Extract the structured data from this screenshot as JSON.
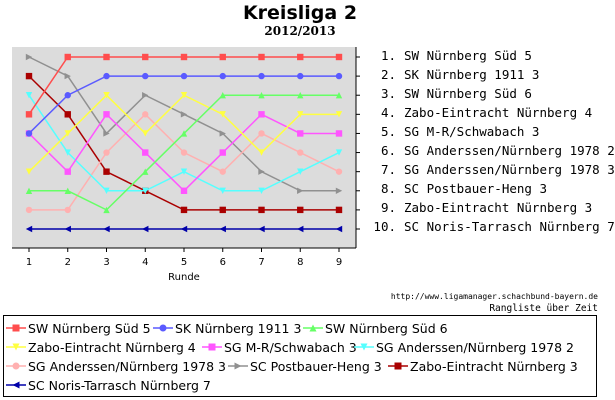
{
  "chart_data": {
    "type": "line",
    "title": "Kreisliga 2",
    "subtitle": "2012/2013",
    "xlabel": "Runde",
    "ylabel": "",
    "x": [
      1,
      2,
      3,
      4,
      5,
      6,
      7,
      8,
      9
    ],
    "ylim": [
      1,
      10
    ],
    "y_inverted": true,
    "grid": false,
    "background": "#dcdcdc",
    "series": [
      {
        "name": "SW Nürnberg Süd 5",
        "color": "#ff4d4d",
        "marker": "square",
        "values": [
          4,
          1,
          1,
          1,
          1,
          1,
          1,
          1,
          1
        ]
      },
      {
        "name": "SK Nürnberg 1911 3",
        "color": "#5a5aff",
        "marker": "circle",
        "values": [
          5,
          3,
          2,
          2,
          2,
          2,
          2,
          2,
          2
        ]
      },
      {
        "name": "SW Nürnberg Süd 6",
        "color": "#66ff66",
        "marker": "triangle-up",
        "values": [
          8,
          8,
          9,
          7,
          5,
          3,
          3,
          3,
          3
        ]
      },
      {
        "name": "Zabo-Eintracht Nürnberg 4",
        "color": "#ffff40",
        "marker": "triangle-down",
        "values": [
          7,
          5,
          3,
          5,
          3,
          4,
          6,
          4,
          4
        ]
      },
      {
        "name": "SG M-R/Schwabach 3",
        "color": "#ff55ff",
        "marker": "square",
        "values": [
          5,
          7,
          4,
          6,
          8,
          6,
          4,
          5,
          5
        ]
      },
      {
        "name": "SG Anderssen/Nürnberg 1978 2",
        "color": "#55ffff",
        "marker": "triangle-down",
        "values": [
          3,
          6,
          8,
          8,
          7,
          8,
          8,
          7,
          6
        ]
      },
      {
        "name": "SG Anderssen/Nürnberg 1978 3",
        "color": "#ffb0b0",
        "marker": "circle",
        "values": [
          9,
          9,
          6,
          4,
          6,
          7,
          5,
          6,
          7
        ]
      },
      {
        "name": "SC Postbauer-Heng 3",
        "color": "#909090",
        "marker": "triangle-right",
        "values": [
          1,
          2,
          5,
          3,
          4,
          5,
          7,
          8,
          8
        ]
      },
      {
        "name": "Zabo-Eintracht Nürnberg 3",
        "color": "#aa0000",
        "marker": "square",
        "values": [
          2,
          4,
          7,
          8,
          9,
          9,
          9,
          9,
          9
        ]
      },
      {
        "name": "SC Noris-Tarrasch Nürnberg 7",
        "color": "#0000aa",
        "marker": "triangle-left",
        "values": [
          10,
          10,
          10,
          10,
          10,
          10,
          10,
          10,
          10
        ]
      }
    ]
  },
  "final_ranking": [
    {
      "rank": "1.",
      "name": "SW Nürnberg Süd 5"
    },
    {
      "rank": "2.",
      "name": "SK Nürnberg 1911 3"
    },
    {
      "rank": "3.",
      "name": "SW Nürnberg Süd 6"
    },
    {
      "rank": "4.",
      "name": "Zabo-Eintracht Nürnberg 4"
    },
    {
      "rank": "5.",
      "name": "SG M-R/Schwabach 3"
    },
    {
      "rank": "6.",
      "name": "SG Anderssen/Nürnberg 1978 2"
    },
    {
      "rank": "7.",
      "name": "SG Anderssen/Nürnberg 1978 3"
    },
    {
      "rank": "8.",
      "name": "SC Postbauer-Heng 3"
    },
    {
      "rank": "9.",
      "name": "Zabo-Eintracht Nürnberg 3"
    },
    {
      "rank": "10.",
      "name": "SC Noris-Tarrasch Nürnberg 7"
    }
  ],
  "source_url": "http://www.ligamanager.schachbund-bayern.de",
  "ranking_note": "Rangliste über Zeit"
}
